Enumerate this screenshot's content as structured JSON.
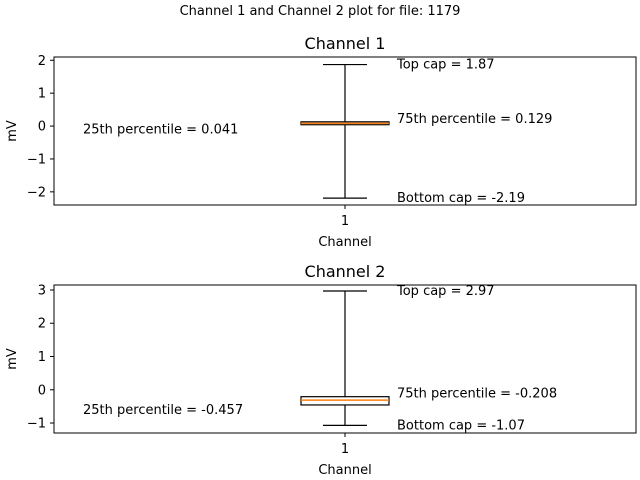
{
  "suptitle": "Channel 1 and Channel 2 plot for file: 1179",
  "chart_data": [
    {
      "type": "box",
      "title": "Channel 1",
      "xlabel": "Channel",
      "ylabel": "mV",
      "categories": [
        "1"
      ],
      "yticks": [
        "2",
        "1",
        "0",
        "−1",
        "−2"
      ],
      "ylim": [
        -2.4,
        2.1
      ],
      "grid": false,
      "box": {
        "whisker_low": -2.19,
        "q1": 0.041,
        "median": 0.08,
        "q3": 0.129,
        "whisker_high": 1.87
      },
      "annotations": {
        "top_cap": "Top cap =   1.87",
        "q3": "75th percentile =  0.129",
        "q1": "25th percentile =  0.041",
        "bottom_cap": "Bottom cap =  -2.19"
      },
      "colors": {
        "box": "#000000",
        "median": "#ff7f0e"
      }
    },
    {
      "type": "box",
      "title": "Channel 2",
      "xlabel": "Channel",
      "ylabel": "mV",
      "categories": [
        "1"
      ],
      "yticks": [
        "3",
        "2",
        "1",
        "0",
        "−1"
      ],
      "ylim": [
        -1.3,
        3.15
      ],
      "grid": false,
      "box": {
        "whisker_low": -1.07,
        "q1": -0.457,
        "median": -0.31,
        "q3": -0.208,
        "whisker_high": 2.97
      },
      "annotations": {
        "top_cap": "Top cap =   2.97",
        "q3": "75th percentile = -0.208",
        "q1": "25th percentile = -0.457",
        "bottom_cap": "Bottom cap =  -1.07"
      },
      "colors": {
        "box": "#000000",
        "median": "#ff7f0e"
      }
    }
  ]
}
